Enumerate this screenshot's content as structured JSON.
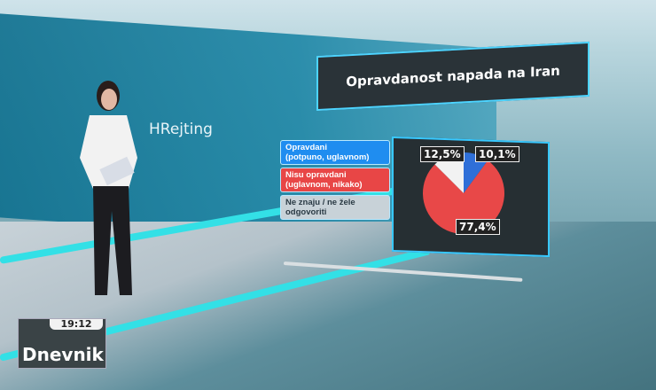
{
  "broadcast": {
    "clock": "19:12",
    "brand": "Dnevnik",
    "wall_logo": "HRejting"
  },
  "chart_data": {
    "type": "pie",
    "title": "Opravdanost napada na Iran",
    "categories": [
      "Opravdani (potpuno, uglavnom)",
      "Nisu opravdani (uglavnom, nikako)",
      "Ne znaju / ne žele odgovoriti"
    ],
    "values": [
      10.1,
      77.4,
      12.5
    ],
    "value_labels": [
      "10,1%",
      "77,4%",
      "12,5%"
    ],
    "colors": [
      "#2f6fd8",
      "#e84848",
      "#f2f2f2"
    ],
    "legend": "left"
  },
  "legend": [
    {
      "label": "Opravdani\n(potpuno, uglavnom)",
      "bg": "#1f8df0",
      "fg": "#ffffff"
    },
    {
      "label": "Nisu opravdani\n(uglavnom, nikako)",
      "bg": "#e84646",
      "fg": "#ffffff"
    },
    {
      "label": "Ne znaju / ne žele\nodgovoriti",
      "bg": "#c8d2d8",
      "fg": "#2a3a44"
    }
  ]
}
